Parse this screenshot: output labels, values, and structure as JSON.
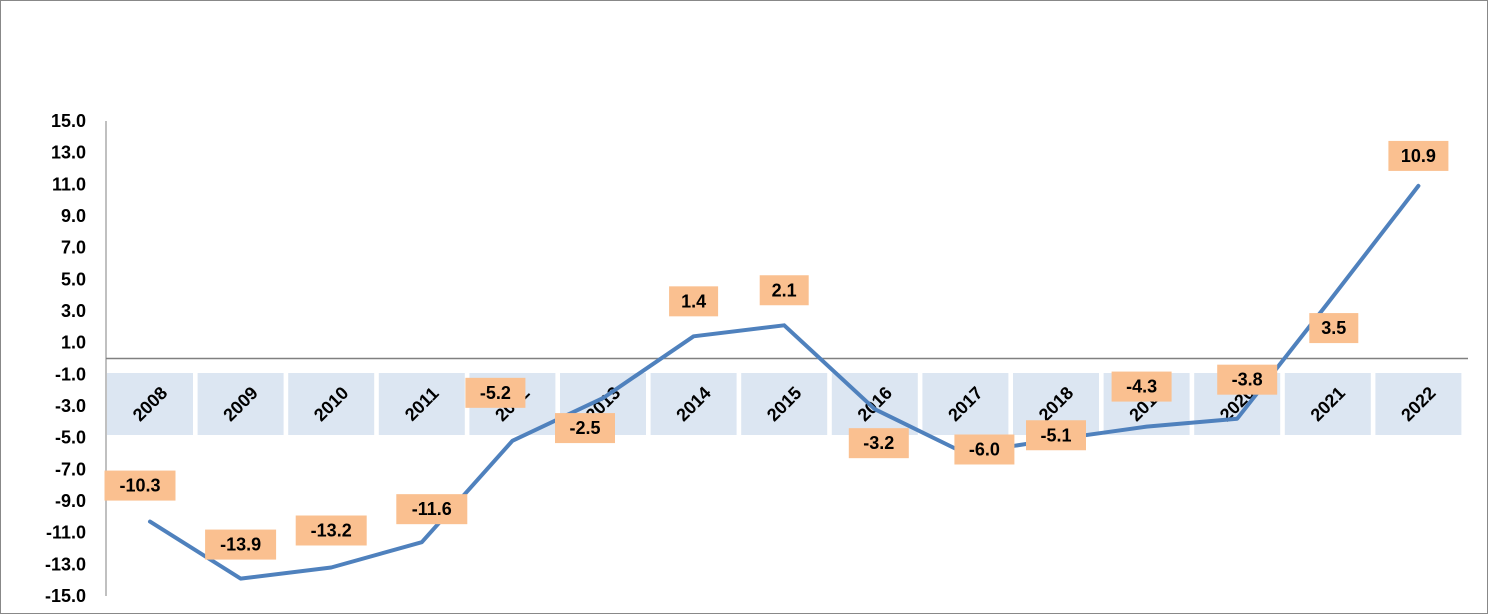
{
  "chart_data": {
    "type": "line",
    "title": "",
    "xlabel": "",
    "ylabel": "",
    "categories": [
      "2008",
      "2009",
      "2010",
      "2011",
      "2012",
      "2013",
      "2014",
      "2015",
      "2016",
      "2017",
      "2018",
      "2019",
      "2020",
      "2021",
      "2022"
    ],
    "series": [
      {
        "values": [
          -10.3,
          -13.9,
          -13.2,
          -11.6,
          -5.2,
          -2.5,
          1.4,
          2.1,
          -3.2,
          -6.0,
          -5.1,
          -4.3,
          -3.8,
          3.5,
          10.9
        ]
      }
    ],
    "data_labels": [
      "-10.3",
      "-13.9",
      "-13.2",
      "-11.6",
      "-5.2",
      "-2.5",
      "1.4",
      "2.1",
      "-3.2",
      "-6.0",
      "-5.1",
      "-4.3",
      "-3.8",
      "3.5",
      "10.9"
    ],
    "ylim": [
      -15,
      15
    ],
    "yticks": [
      "15.0",
      "13.0",
      "11.0",
      "9.0",
      "7.0",
      "5.0",
      "3.0",
      "1.0",
      "-1.0",
      "-3.0",
      "-5.0",
      "-7.0",
      "-9.0",
      "-11.0",
      "-13.0",
      "-15.0"
    ],
    "grid": false,
    "legend": "none",
    "colors": {
      "line": "#4F81BD",
      "label_fill": "#FAC090",
      "category_band": "#DCE6F2",
      "axis": "#808080"
    }
  }
}
